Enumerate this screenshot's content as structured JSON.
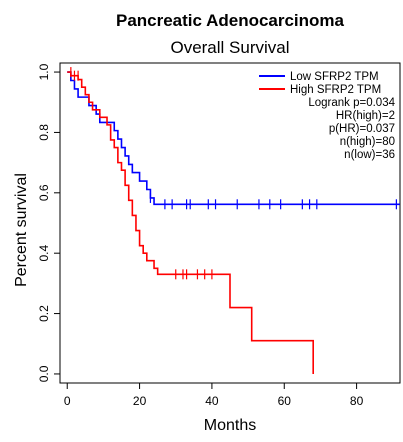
{
  "chart_data": {
    "type": "line",
    "title": "Pancreatic Adenocarcinoma",
    "subtitle": "Overall Survival",
    "xlabel": "Months",
    "ylabel": "Percent survival",
    "xlim": [
      -2,
      92
    ],
    "ylim": [
      -0.03,
      1.03
    ],
    "xticks": [
      0,
      20,
      40,
      60,
      80
    ],
    "yticks": [
      0.0,
      0.2,
      0.4,
      0.6,
      0.8,
      1.0
    ],
    "xtick_labels": [
      "0",
      "20",
      "40",
      "60",
      "80"
    ],
    "ytick_labels": [
      "0.0",
      "0.2",
      "0.4",
      "0.6",
      "0.8",
      "1.0"
    ],
    "grid": false,
    "legend_position": "top-right",
    "legend_color": "#000000",
    "series": [
      {
        "name": "Low SFRP2 TPM",
        "color": "#0000ff",
        "step": [
          [
            0,
            1.0
          ],
          [
            1,
            0.972
          ],
          [
            2,
            0.944
          ],
          [
            3,
            0.917
          ],
          [
            6,
            0.889
          ],
          [
            8,
            0.861
          ],
          [
            9,
            0.833
          ],
          [
            13,
            0.806
          ],
          [
            14,
            0.778
          ],
          [
            15,
            0.75
          ],
          [
            16,
            0.722
          ],
          [
            17,
            0.694
          ],
          [
            18,
            0.667
          ],
          [
            20,
            0.639
          ],
          [
            22,
            0.611
          ],
          [
            23,
            0.583
          ],
          [
            24,
            0.562
          ],
          [
            92,
            0.562
          ]
        ],
        "censored": [
          [
            23,
            0.583
          ],
          [
            27,
            0.562
          ],
          [
            29,
            0.562
          ],
          [
            33,
            0.562
          ],
          [
            34,
            0.562
          ],
          [
            39,
            0.562
          ],
          [
            41,
            0.562
          ],
          [
            47,
            0.562
          ],
          [
            53,
            0.562
          ],
          [
            56,
            0.562
          ],
          [
            59,
            0.562
          ],
          [
            65,
            0.562
          ],
          [
            67,
            0.562
          ],
          [
            69,
            0.562
          ],
          [
            91,
            0.562
          ]
        ]
      },
      {
        "name": "High SFRP2 TPM",
        "color": "#ff0000",
        "step": [
          [
            0,
            1.0
          ],
          [
            1,
            0.988
          ],
          [
            3,
            0.975
          ],
          [
            4,
            0.95
          ],
          [
            5,
            0.925
          ],
          [
            6,
            0.9
          ],
          [
            7,
            0.875
          ],
          [
            9,
            0.85
          ],
          [
            11,
            0.825
          ],
          [
            12,
            0.775
          ],
          [
            13,
            0.75
          ],
          [
            14,
            0.7
          ],
          [
            15,
            0.675
          ],
          [
            16,
            0.625
          ],
          [
            17,
            0.575
          ],
          [
            18,
            0.525
          ],
          [
            19,
            0.475
          ],
          [
            20,
            0.425
          ],
          [
            21,
            0.4
          ],
          [
            22,
            0.375
          ],
          [
            24,
            0.35
          ],
          [
            25,
            0.33
          ],
          [
            45,
            0.22
          ],
          [
            51,
            0.11
          ],
          [
            68,
            0.0
          ]
        ],
        "censored": [
          [
            1,
            1.0
          ],
          [
            2,
            0.988
          ],
          [
            3,
            0.988
          ],
          [
            30,
            0.33
          ],
          [
            32,
            0.33
          ],
          [
            33,
            0.33
          ],
          [
            36,
            0.33
          ],
          [
            38,
            0.33
          ],
          [
            40,
            0.33
          ]
        ]
      }
    ],
    "annotations": [
      "Logrank p=0.034",
      "HR(high)=2",
      "p(HR)=0.037",
      "n(high)=80",
      "n(low)=36"
    ]
  }
}
